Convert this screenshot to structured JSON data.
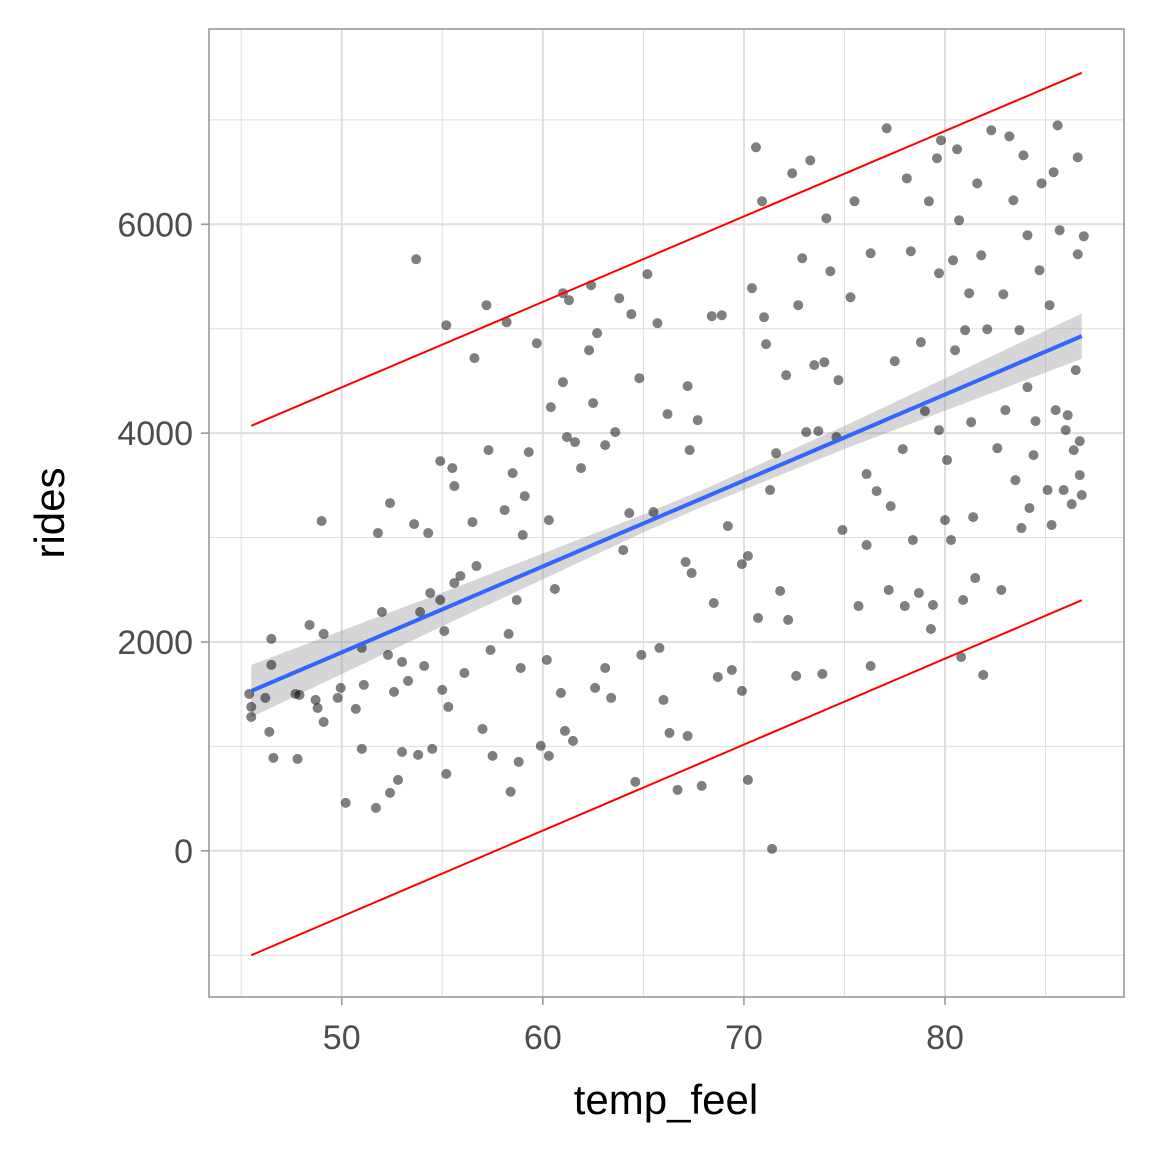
{
  "chart_data": {
    "type": "scatter",
    "title": "",
    "xlabel": "temp_feel",
    "ylabel": "rides",
    "xlim": [
      43.4,
      88.9
    ],
    "ylim": [
      -1400,
      7870
    ],
    "x_ticks": [
      50,
      60,
      70,
      80
    ],
    "x_tick_labels": [
      "50",
      "60",
      "70",
      "80"
    ],
    "x_minor": [
      45,
      55,
      65,
      75,
      85
    ],
    "y_ticks": [
      0,
      2000,
      4000,
      6000
    ],
    "y_tick_labels": [
      "0",
      "2000",
      "4000",
      "6000"
    ],
    "y_minor": [
      -1000,
      1000,
      3000,
      5000,
      7000
    ],
    "grid": true,
    "legend": "none",
    "colors": {
      "points": "#000000",
      "fit_line": "#3366FF",
      "ci_band": "#999999",
      "prediction_lines": "#FF0000",
      "grid": "#dedede",
      "border": "#999999"
    },
    "points": [
      [
        45.4,
        1502
      ],
      [
        45.5,
        1378
      ],
      [
        45.5,
        1282
      ],
      [
        46.2,
        1464
      ],
      [
        46.4,
        1139
      ],
      [
        46.5,
        2029
      ],
      [
        46.5,
        1780
      ],
      [
        46.6,
        890
      ],
      [
        47.7,
        1502
      ],
      [
        47.8,
        880
      ],
      [
        47.9,
        1493
      ],
      [
        48.4,
        2163
      ],
      [
        48.7,
        1445
      ],
      [
        48.8,
        1368
      ],
      [
        49.0,
        3158
      ],
      [
        49.1,
        1234
      ],
      [
        49.1,
        2077
      ],
      [
        49.8,
        1464
      ],
      [
        49.95,
        1560
      ],
      [
        50.2,
        459
      ],
      [
        50.7,
        1359
      ],
      [
        51.0,
        1943
      ],
      [
        51.0,
        976
      ],
      [
        51.1,
        1589
      ],
      [
        51.7,
        411
      ],
      [
        51.8,
        3043
      ],
      [
        52.0,
        2287
      ],
      [
        52.3,
        1876
      ],
      [
        52.4,
        3330
      ],
      [
        52.4,
        555
      ],
      [
        52.6,
        1522
      ],
      [
        52.8,
        679
      ],
      [
        53.0,
        1809
      ],
      [
        53.0,
        947
      ],
      [
        53.3,
        1627
      ],
      [
        53.6,
        3129
      ],
      [
        53.7,
        5665
      ],
      [
        53.8,
        919
      ],
      [
        53.9,
        2287
      ],
      [
        54.1,
        1770
      ],
      [
        54.3,
        3043
      ],
      [
        54.4,
        2469
      ],
      [
        54.5,
        976
      ],
      [
        54.9,
        3732
      ],
      [
        54.9,
        2402
      ],
      [
        55.0,
        1541
      ],
      [
        55.1,
        2105
      ],
      [
        55.2,
        5033
      ],
      [
        55.2,
        737
      ],
      [
        55.3,
        1378
      ],
      [
        55.5,
        3665
      ],
      [
        55.6,
        3493
      ],
      [
        55.6,
        2565
      ],
      [
        55.9,
        2632
      ],
      [
        56.1,
        1703
      ],
      [
        56.5,
        3148
      ],
      [
        56.6,
        4718
      ],
      [
        56.7,
        2727
      ],
      [
        57.0,
        1167
      ],
      [
        57.2,
        5225
      ],
      [
        57.3,
        3837
      ],
      [
        57.4,
        1923
      ],
      [
        57.5,
        909
      ],
      [
        58.1,
        3263
      ],
      [
        58.2,
        5062
      ],
      [
        58.3,
        2077
      ],
      [
        58.4,
        565
      ],
      [
        58.5,
        3617
      ],
      [
        58.7,
        2402
      ],
      [
        58.8,
        852
      ],
      [
        58.9,
        1751
      ],
      [
        59.0,
        3024
      ],
      [
        59.1,
        3397
      ],
      [
        59.3,
        3818
      ],
      [
        59.7,
        4861
      ],
      [
        59.9,
        1005
      ],
      [
        60.2,
        1828
      ],
      [
        60.3,
        909
      ],
      [
        60.3,
        3167
      ],
      [
        60.4,
        4249
      ],
      [
        60.6,
        2507
      ],
      [
        60.9,
        1512
      ],
      [
        61.0,
        4488
      ],
      [
        61.0,
        5340
      ],
      [
        61.1,
        1148
      ],
      [
        61.2,
        3962
      ],
      [
        61.3,
        5273
      ],
      [
        61.5,
        1053
      ],
      [
        61.6,
        3914
      ],
      [
        61.9,
        3665
      ],
      [
        62.3,
        4794
      ],
      [
        62.4,
        5416
      ],
      [
        62.5,
        4287
      ],
      [
        62.6,
        1560
      ],
      [
        62.7,
        4957
      ],
      [
        63.1,
        1751
      ],
      [
        63.1,
        3885
      ],
      [
        63.4,
        1464
      ],
      [
        63.6,
        4010
      ],
      [
        63.8,
        5292
      ],
      [
        64.0,
        2880
      ],
      [
        64.3,
        3234
      ],
      [
        64.4,
        5139
      ],
      [
        64.6,
        660
      ],
      [
        64.8,
        4526
      ],
      [
        64.9,
        1876
      ],
      [
        65.2,
        5522
      ],
      [
        65.5,
        3244
      ],
      [
        65.7,
        5053
      ],
      [
        65.8,
        1943
      ],
      [
        66.0,
        1445
      ],
      [
        66.2,
        4182
      ],
      [
        66.3,
        1129
      ],
      [
        66.7,
        584
      ],
      [
        67.1,
        2766
      ],
      [
        67.2,
        4450
      ],
      [
        67.2,
        1100
      ],
      [
        67.3,
        3837
      ],
      [
        67.4,
        2660
      ],
      [
        67.7,
        4124
      ],
      [
        67.9,
        622
      ],
      [
        68.4,
        5120
      ],
      [
        68.5,
        2373
      ],
      [
        68.7,
        1665
      ],
      [
        68.9,
        5129
      ],
      [
        69.2,
        3110
      ],
      [
        69.4,
        1732
      ],
      [
        69.9,
        1531
      ],
      [
        69.9,
        2746
      ],
      [
        70.2,
        2823
      ],
      [
        70.2,
        679
      ],
      [
        70.4,
        5388
      ],
      [
        70.6,
        6737
      ],
      [
        70.7,
        2230
      ],
      [
        70.9,
        6220
      ],
      [
        71.0,
        5110
      ],
      [
        71.1,
        4852
      ],
      [
        71.3,
        3455
      ],
      [
        71.4,
        19
      ],
      [
        71.6,
        3808
      ],
      [
        71.8,
        2488
      ],
      [
        72.1,
        4555
      ],
      [
        72.2,
        2211
      ],
      [
        72.4,
        6488
      ],
      [
        72.6,
        1675
      ],
      [
        72.7,
        5225
      ],
      [
        72.9,
        5675
      ],
      [
        73.1,
        4010
      ],
      [
        73.3,
        6612
      ],
      [
        73.5,
        4651
      ],
      [
        73.7,
        4019
      ],
      [
        73.9,
        1694
      ],
      [
        74.0,
        4679
      ],
      [
        74.1,
        6057
      ],
      [
        74.3,
        5550
      ],
      [
        74.6,
        3962
      ],
      [
        74.7,
        4507
      ],
      [
        74.9,
        3072
      ],
      [
        75.3,
        5301
      ],
      [
        75.5,
        6220
      ],
      [
        75.7,
        2344
      ],
      [
        76.1,
        3608
      ],
      [
        76.1,
        2928
      ],
      [
        76.3,
        1770
      ],
      [
        76.3,
        5722
      ],
      [
        76.6,
        3445
      ],
      [
        77.1,
        6919
      ],
      [
        77.2,
        2498
      ],
      [
        77.3,
        3301
      ],
      [
        77.5,
        4689
      ],
      [
        77.9,
        3847
      ],
      [
        78.0,
        2344
      ],
      [
        78.1,
        6440
      ],
      [
        78.3,
        5742
      ],
      [
        78.4,
        2976
      ],
      [
        78.7,
        2469
      ],
      [
        78.8,
        4871
      ],
      [
        79.0,
        4211
      ],
      [
        79.2,
        6220
      ],
      [
        79.3,
        2124
      ],
      [
        79.4,
        2354
      ],
      [
        79.6,
        6632
      ],
      [
        79.7,
        5531
      ],
      [
        79.7,
        4029
      ],
      [
        79.8,
        6804
      ],
      [
        80.0,
        3167
      ],
      [
        80.1,
        3742
      ],
      [
        80.3,
        2976
      ],
      [
        80.4,
        5655
      ],
      [
        80.5,
        4794
      ],
      [
        80.6,
        6718
      ],
      [
        80.7,
        6038
      ],
      [
        80.8,
        1856
      ],
      [
        80.9,
        2402
      ],
      [
        81.0,
        4986
      ],
      [
        81.2,
        5340
      ],
      [
        81.3,
        4105
      ],
      [
        81.4,
        3196
      ],
      [
        81.5,
        2612
      ],
      [
        81.6,
        6392
      ],
      [
        81.8,
        5703
      ],
      [
        81.9,
        1684
      ],
      [
        82.1,
        4995
      ],
      [
        82.3,
        6900
      ],
      [
        82.6,
        3856
      ],
      [
        82.8,
        2498
      ],
      [
        82.9,
        5330
      ],
      [
        83.0,
        4220
      ],
      [
        83.2,
        6842
      ],
      [
        83.4,
        6230
      ],
      [
        83.5,
        3550
      ],
      [
        83.7,
        4986
      ],
      [
        83.8,
        3091
      ],
      [
        83.9,
        6660
      ],
      [
        84.1,
        5895
      ],
      [
        84.1,
        4440
      ],
      [
        84.2,
        3282
      ],
      [
        84.4,
        3789
      ],
      [
        84.5,
        4115
      ],
      [
        84.7,
        5560
      ],
      [
        84.8,
        6392
      ],
      [
        85.1,
        3455
      ],
      [
        85.2,
        5225
      ],
      [
        85.3,
        3120
      ],
      [
        85.4,
        6498
      ],
      [
        85.5,
        4220
      ],
      [
        85.6,
        6947
      ],
      [
        85.7,
        5943
      ],
      [
        85.9,
        3455
      ],
      [
        86.0,
        4029
      ],
      [
        86.1,
        4172
      ],
      [
        86.3,
        3320
      ],
      [
        86.4,
        3837
      ],
      [
        86.5,
        4603
      ],
      [
        86.6,
        5713
      ],
      [
        86.6,
        6641
      ],
      [
        86.7,
        3598
      ],
      [
        86.7,
        3923
      ],
      [
        86.8,
        3407
      ],
      [
        86.9,
        5885
      ]
    ],
    "fit": {
      "x": [
        45.5,
        55,
        65,
        68,
        75,
        86.8
      ],
      "y": [
        1530,
        2312,
        3135,
        3381,
        3958,
        4929
      ],
      "lower": [
        1280,
        2151,
        3049,
        3301,
        3848,
        4712
      ],
      "upper": [
        1780,
        2473,
        3221,
        3461,
        4068,
        5146
      ]
    },
    "prediction_lower": {
      "x": [
        45.5,
        86.8
      ],
      "y": [
        -1000,
        2400
      ]
    },
    "prediction_upper": {
      "x": [
        45.5,
        86.8
      ],
      "y": [
        4070,
        7450
      ]
    }
  }
}
